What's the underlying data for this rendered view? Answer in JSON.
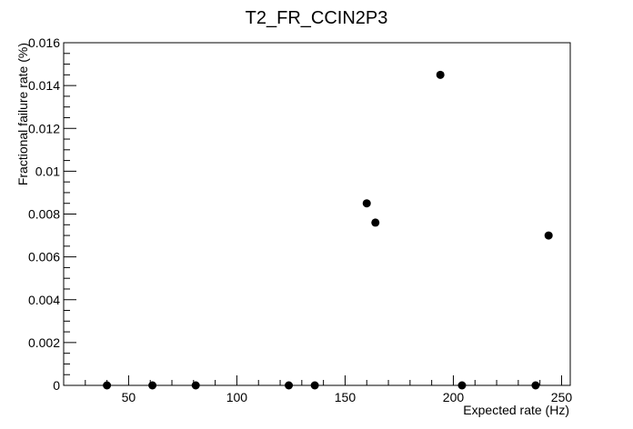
{
  "chart_data": {
    "type": "scatter",
    "title": "T2_FR_CCIN2P3",
    "xlabel": "Expected rate (Hz)",
    "ylabel": "Fractional failure rate (%)",
    "xlim": [
      20,
      254
    ],
    "ylim": [
      0,
      0.016
    ],
    "grid": false,
    "x_ticks": [
      50,
      100,
      150,
      200,
      250
    ],
    "x_tick_labels": [
      "50",
      "100",
      "150",
      "200",
      "250"
    ],
    "y_ticks": [
      0,
      0.002,
      0.004,
      0.006,
      0.008,
      0.01,
      0.012,
      0.014,
      0.016
    ],
    "y_tick_labels": [
      "0",
      "0.002",
      "0.004",
      "0.006",
      "0.008",
      "0.01",
      "0.012",
      "0.014",
      "0.016"
    ],
    "marker_color": "#000000",
    "points": [
      {
        "x": 40,
        "y": 0
      },
      {
        "x": 61,
        "y": 0
      },
      {
        "x": 81,
        "y": 0
      },
      {
        "x": 124,
        "y": 0
      },
      {
        "x": 136,
        "y": 0
      },
      {
        "x": 160,
        "y": 0.0085
      },
      {
        "x": 164,
        "y": 0.0076
      },
      {
        "x": 194,
        "y": 0.0145
      },
      {
        "x": 204,
        "y": 0
      },
      {
        "x": 238,
        "y": 0
      },
      {
        "x": 244,
        "y": 0.007
      }
    ]
  }
}
